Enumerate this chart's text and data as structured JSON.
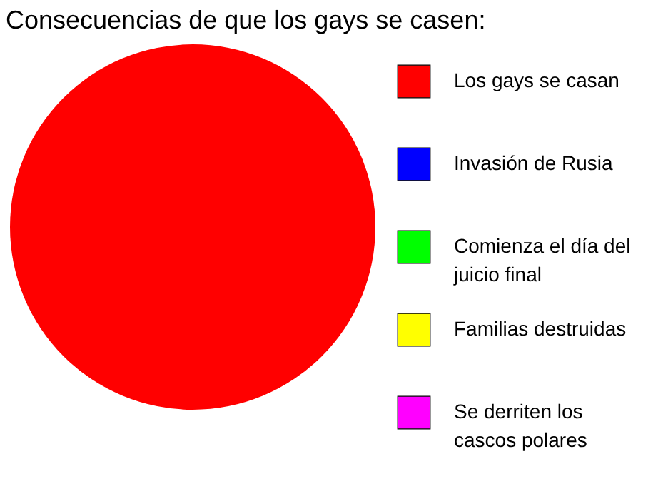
{
  "chart_data": {
    "type": "pie",
    "title": "Consecuencias de que los gays se casen:",
    "categories": [
      "Los gays se casan",
      "Invasión de Rusia",
      "Comienza el día del juicio final",
      "Familias destruidas",
      "Se derriten los cascos polares"
    ],
    "values": [
      100,
      0,
      0,
      0,
      0
    ],
    "colors": [
      "#ff0000",
      "#0000ff",
      "#00ff00",
      "#ffff00",
      "#ff00ff"
    ],
    "legend": "right"
  }
}
